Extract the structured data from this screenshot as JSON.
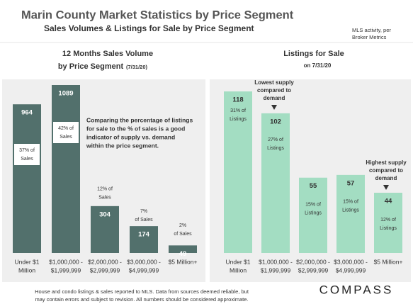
{
  "header": {
    "title": "Marin County Market Statistics by Price Segment",
    "subtitle": "Sales Volumes & Listings for Sale by Price Segment",
    "note": [
      "MLS activity, per",
      "Broker Metrics"
    ]
  },
  "footer": [
    "House and condo listings & sales reported to MLS. Data from sources deemed reliable, but",
    "may contain errors and subject to revision. All numbers should be considered approximate."
  ],
  "logo": "COMPASS",
  "chart_data": [
    {
      "type": "bar",
      "title": [
        "12 Months Sales Volume",
        "by Price Segment"
      ],
      "title_date": "(7/31/20)",
      "categories": [
        [
          "Under $1",
          "Million"
        ],
        [
          "$1,000,000 -",
          "$1,999,999"
        ],
        [
          "$2,000,000 -",
          "$2,999,999"
        ],
        [
          "$3,000,000 -",
          "$4,999,999"
        ],
        [
          "$5 Million+"
        ]
      ],
      "values": [
        964,
        1089,
        304,
        174,
        49
      ],
      "share_labels": [
        [
          "37% of",
          "Sales"
        ],
        [
          "42% of",
          "Sales"
        ],
        [
          "12% of",
          "Sales"
        ],
        [
          "7%",
          "of Sales"
        ],
        [
          "2%",
          "of Sales"
        ]
      ],
      "color": "#52706c",
      "annotation": [
        "Comparing the percentage of listings",
        "for sale to the % of sales is a good",
        "indicator of supply vs. demand",
        "within the price segment."
      ]
    },
    {
      "type": "bar",
      "title": [
        "Listings for Sale",
        "on 7/31/20"
      ],
      "categories": [
        [
          "Under $1",
          "Million"
        ],
        [
          "$1,000,000 -",
          "$1,999,999"
        ],
        [
          "$2,000,000 -",
          "$2,999,999"
        ],
        [
          "$3,000,000 -",
          "$4,999,999"
        ],
        [
          "$5 Million+"
        ]
      ],
      "values": [
        118,
        102,
        55,
        57,
        44
      ],
      "share_labels": [
        [
          "31% of",
          "Listings"
        ],
        [
          "27% of",
          "Listings"
        ],
        [
          "15% of",
          "Listings"
        ],
        [
          "15% of",
          "Listings"
        ],
        [
          "12% of",
          "Listings"
        ]
      ],
      "color": "#a3ddc2",
      "annotations": [
        [
          "Lowest supply",
          "compared to",
          "demand"
        ],
        [
          "Highest supply",
          "compared to",
          "demand"
        ]
      ]
    }
  ]
}
